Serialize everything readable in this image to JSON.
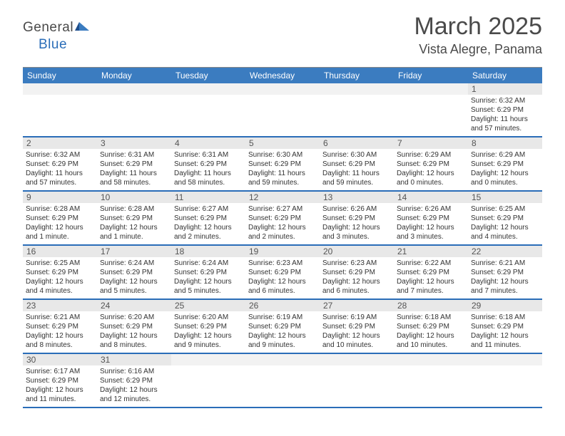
{
  "colors": {
    "header_bg": "#3b7cc0",
    "week_border": "#2a6db8",
    "daynum_bg": "#e8e8e8",
    "text_dark": "#4a4a4a",
    "text_body": "#333333",
    "logo_blue": "#2a6db8"
  },
  "logo": {
    "text1": "General",
    "text2": "Blue"
  },
  "title": "March 2025",
  "location": "Vista Alegre, Panama",
  "dow": [
    "Sunday",
    "Monday",
    "Tuesday",
    "Wednesday",
    "Thursday",
    "Friday",
    "Saturday"
  ],
  "weeks": [
    [
      {
        "n": "",
        "sr": "",
        "ss": "",
        "dl": ""
      },
      {
        "n": "",
        "sr": "",
        "ss": "",
        "dl": ""
      },
      {
        "n": "",
        "sr": "",
        "ss": "",
        "dl": ""
      },
      {
        "n": "",
        "sr": "",
        "ss": "",
        "dl": ""
      },
      {
        "n": "",
        "sr": "",
        "ss": "",
        "dl": ""
      },
      {
        "n": "",
        "sr": "",
        "ss": "",
        "dl": ""
      },
      {
        "n": "1",
        "sr": "Sunrise: 6:32 AM",
        "ss": "Sunset: 6:29 PM",
        "dl": "Daylight: 11 hours and 57 minutes."
      }
    ],
    [
      {
        "n": "2",
        "sr": "Sunrise: 6:32 AM",
        "ss": "Sunset: 6:29 PM",
        "dl": "Daylight: 11 hours and 57 minutes."
      },
      {
        "n": "3",
        "sr": "Sunrise: 6:31 AM",
        "ss": "Sunset: 6:29 PM",
        "dl": "Daylight: 11 hours and 58 minutes."
      },
      {
        "n": "4",
        "sr": "Sunrise: 6:31 AM",
        "ss": "Sunset: 6:29 PM",
        "dl": "Daylight: 11 hours and 58 minutes."
      },
      {
        "n": "5",
        "sr": "Sunrise: 6:30 AM",
        "ss": "Sunset: 6:29 PM",
        "dl": "Daylight: 11 hours and 59 minutes."
      },
      {
        "n": "6",
        "sr": "Sunrise: 6:30 AM",
        "ss": "Sunset: 6:29 PM",
        "dl": "Daylight: 11 hours and 59 minutes."
      },
      {
        "n": "7",
        "sr": "Sunrise: 6:29 AM",
        "ss": "Sunset: 6:29 PM",
        "dl": "Daylight: 12 hours and 0 minutes."
      },
      {
        "n": "8",
        "sr": "Sunrise: 6:29 AM",
        "ss": "Sunset: 6:29 PM",
        "dl": "Daylight: 12 hours and 0 minutes."
      }
    ],
    [
      {
        "n": "9",
        "sr": "Sunrise: 6:28 AM",
        "ss": "Sunset: 6:29 PM",
        "dl": "Daylight: 12 hours and 1 minute."
      },
      {
        "n": "10",
        "sr": "Sunrise: 6:28 AM",
        "ss": "Sunset: 6:29 PM",
        "dl": "Daylight: 12 hours and 1 minute."
      },
      {
        "n": "11",
        "sr": "Sunrise: 6:27 AM",
        "ss": "Sunset: 6:29 PM",
        "dl": "Daylight: 12 hours and 2 minutes."
      },
      {
        "n": "12",
        "sr": "Sunrise: 6:27 AM",
        "ss": "Sunset: 6:29 PM",
        "dl": "Daylight: 12 hours and 2 minutes."
      },
      {
        "n": "13",
        "sr": "Sunrise: 6:26 AM",
        "ss": "Sunset: 6:29 PM",
        "dl": "Daylight: 12 hours and 3 minutes."
      },
      {
        "n": "14",
        "sr": "Sunrise: 6:26 AM",
        "ss": "Sunset: 6:29 PM",
        "dl": "Daylight: 12 hours and 3 minutes."
      },
      {
        "n": "15",
        "sr": "Sunrise: 6:25 AM",
        "ss": "Sunset: 6:29 PM",
        "dl": "Daylight: 12 hours and 4 minutes."
      }
    ],
    [
      {
        "n": "16",
        "sr": "Sunrise: 6:25 AM",
        "ss": "Sunset: 6:29 PM",
        "dl": "Daylight: 12 hours and 4 minutes."
      },
      {
        "n": "17",
        "sr": "Sunrise: 6:24 AM",
        "ss": "Sunset: 6:29 PM",
        "dl": "Daylight: 12 hours and 5 minutes."
      },
      {
        "n": "18",
        "sr": "Sunrise: 6:24 AM",
        "ss": "Sunset: 6:29 PM",
        "dl": "Daylight: 12 hours and 5 minutes."
      },
      {
        "n": "19",
        "sr": "Sunrise: 6:23 AM",
        "ss": "Sunset: 6:29 PM",
        "dl": "Daylight: 12 hours and 6 minutes."
      },
      {
        "n": "20",
        "sr": "Sunrise: 6:23 AM",
        "ss": "Sunset: 6:29 PM",
        "dl": "Daylight: 12 hours and 6 minutes."
      },
      {
        "n": "21",
        "sr": "Sunrise: 6:22 AM",
        "ss": "Sunset: 6:29 PM",
        "dl": "Daylight: 12 hours and 7 minutes."
      },
      {
        "n": "22",
        "sr": "Sunrise: 6:21 AM",
        "ss": "Sunset: 6:29 PM",
        "dl": "Daylight: 12 hours and 7 minutes."
      }
    ],
    [
      {
        "n": "23",
        "sr": "Sunrise: 6:21 AM",
        "ss": "Sunset: 6:29 PM",
        "dl": "Daylight: 12 hours and 8 minutes."
      },
      {
        "n": "24",
        "sr": "Sunrise: 6:20 AM",
        "ss": "Sunset: 6:29 PM",
        "dl": "Daylight: 12 hours and 8 minutes."
      },
      {
        "n": "25",
        "sr": "Sunrise: 6:20 AM",
        "ss": "Sunset: 6:29 PM",
        "dl": "Daylight: 12 hours and 9 minutes."
      },
      {
        "n": "26",
        "sr": "Sunrise: 6:19 AM",
        "ss": "Sunset: 6:29 PM",
        "dl": "Daylight: 12 hours and 9 minutes."
      },
      {
        "n": "27",
        "sr": "Sunrise: 6:19 AM",
        "ss": "Sunset: 6:29 PM",
        "dl": "Daylight: 12 hours and 10 minutes."
      },
      {
        "n": "28",
        "sr": "Sunrise: 6:18 AM",
        "ss": "Sunset: 6:29 PM",
        "dl": "Daylight: 12 hours and 10 minutes."
      },
      {
        "n": "29",
        "sr": "Sunrise: 6:18 AM",
        "ss": "Sunset: 6:29 PM",
        "dl": "Daylight: 12 hours and 11 minutes."
      }
    ],
    [
      {
        "n": "30",
        "sr": "Sunrise: 6:17 AM",
        "ss": "Sunset: 6:29 PM",
        "dl": "Daylight: 12 hours and 11 minutes."
      },
      {
        "n": "31",
        "sr": "Sunrise: 6:16 AM",
        "ss": "Sunset: 6:29 PM",
        "dl": "Daylight: 12 hours and 12 minutes."
      },
      {
        "n": "",
        "sr": "",
        "ss": "",
        "dl": ""
      },
      {
        "n": "",
        "sr": "",
        "ss": "",
        "dl": ""
      },
      {
        "n": "",
        "sr": "",
        "ss": "",
        "dl": ""
      },
      {
        "n": "",
        "sr": "",
        "ss": "",
        "dl": ""
      },
      {
        "n": "",
        "sr": "",
        "ss": "",
        "dl": ""
      }
    ]
  ]
}
